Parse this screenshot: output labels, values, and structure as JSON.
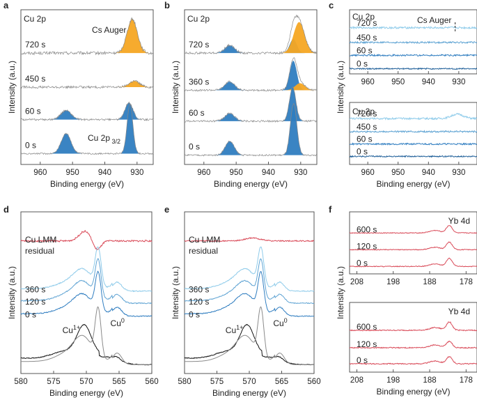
{
  "figure": {
    "colors": {
      "blue": "#2f7dc0",
      "orange": "#f5a623",
      "gray": "#8a8a8a",
      "red": "#d94a58",
      "light_blue": "#8ecbea",
      "mid_blue": "#5ea3d3",
      "dark_blue": "#1f5f99",
      "black": "#111111",
      "envelope": "#a0a0a0"
    }
  },
  "chart_data": [
    {
      "id": "a",
      "panel_label": "a",
      "type": "line",
      "title": "Cu 2p",
      "xlabel": "Binding energy (eV)",
      "ylabel": "Intensity (a.u.)",
      "xlim": [
        966,
        925
      ],
      "xticks": [
        "960",
        "950",
        "940",
        "930"
      ],
      "ylim": [
        0,
        10
      ],
      "series": [
        {
          "name": "720 s",
          "offset": 7.2,
          "noise": 0.2,
          "peaks": [
            {
              "label": "Cs Auger",
              "center": 931.5,
              "width": 1.6,
              "height": 2.2,
              "fill": "orange"
            }
          ]
        },
        {
          "name": "450 s",
          "offset": 5.0,
          "noise": 0.15,
          "peaks": [
            {
              "center": 930.8,
              "width": 1.6,
              "height": 0.4,
              "fill": "orange"
            }
          ]
        },
        {
          "name": "60 s",
          "offset": 2.9,
          "noise": 0.12,
          "peaks": [
            {
              "center": 952.0,
              "width": 1.6,
              "height": 0.6,
              "fill": "blue"
            },
            {
              "center": 932.5,
              "width": 1.2,
              "height": 1.1,
              "fill": "blue"
            }
          ]
        },
        {
          "name": "0 s",
          "offset": 0.7,
          "noise": 0.1,
          "peaks": [
            {
              "center": 952.0,
              "width": 1.5,
              "height": 1.3,
              "fill": "blue"
            },
            {
              "label": "Cu 2p3/2",
              "center": 932.2,
              "width": 0.9,
              "height": 3.2,
              "fill": "blue"
            }
          ]
        }
      ],
      "annotations": {
        "cs_auger": "Cs Auger",
        "cu2p_main": "Cu 2p",
        "cu2p_sub": "3/2"
      }
    },
    {
      "id": "b",
      "panel_label": "b",
      "type": "line",
      "title": "Cu 2p",
      "xlabel": "Binding energy (eV)",
      "ylabel": "Intensity (a.u.)",
      "xlim": [
        966,
        925
      ],
      "xticks": [
        "960",
        "950",
        "940",
        "930"
      ],
      "ylim": [
        0,
        10
      ],
      "series": [
        {
          "name": "720 s",
          "offset": 7.2,
          "noise": 0.15,
          "peaks": [
            {
              "center": 952.0,
              "width": 1.5,
              "height": 0.5,
              "fill": "blue"
            },
            {
              "center": 932.3,
              "width": 1.1,
              "height": 0.9,
              "fill": "blue"
            },
            {
              "center": 930.5,
              "width": 1.7,
              "height": 2.0,
              "fill": "orange"
            }
          ]
        },
        {
          "name": "360 s",
          "offset": 4.8,
          "noise": 0.12,
          "peaks": [
            {
              "center": 952.0,
              "width": 1.5,
              "height": 0.55,
              "fill": "blue"
            },
            {
              "center": 932.3,
              "width": 1.1,
              "height": 1.9,
              "fill": "blue"
            },
            {
              "center": 930.2,
              "width": 1.5,
              "height": 0.45,
              "fill": "orange"
            }
          ]
        },
        {
          "name": "60 s",
          "offset": 2.8,
          "noise": 0.12,
          "peaks": [
            {
              "center": 952.0,
              "width": 1.5,
              "height": 0.5,
              "fill": "blue"
            },
            {
              "center": 932.5,
              "width": 1.0,
              "height": 2.2,
              "fill": "blue"
            }
          ]
        },
        {
          "name": "0 s",
          "offset": 0.6,
          "noise": 0.1,
          "peaks": [
            {
              "center": 952.0,
              "width": 1.4,
              "height": 0.9,
              "fill": "blue"
            },
            {
              "center": 932.2,
              "width": 1.0,
              "height": 3.3,
              "fill": "blue"
            }
          ]
        }
      ]
    },
    {
      "id": "c_top",
      "panel_label": "c",
      "type": "line",
      "title": "Cu 2p",
      "xlabel": "",
      "ylabel": "Intensity (a.u.)",
      "xlim": [
        966,
        924
      ],
      "xticks": [
        "960",
        "950",
        "940",
        "930"
      ],
      "ylim": [
        0,
        10
      ],
      "series": [
        {
          "name": "720 s",
          "offset": 7.2,
          "noise": 0.3,
          "color": "light_blue"
        },
        {
          "name": "450 s",
          "offset": 4.9,
          "noise": 0.25,
          "color": "mid_blue"
        },
        {
          "name": "60 s",
          "offset": 2.9,
          "noise": 0.25,
          "color": "blue"
        },
        {
          "name": "0 s",
          "offset": 0.8,
          "noise": 0.2,
          "color": "dark_blue"
        }
      ],
      "annotations": {
        "cs_auger": "Cs Auger",
        "marker_x": 931.2
      }
    },
    {
      "id": "c_bottom",
      "type": "line",
      "title": "Cu 2p",
      "xlabel": "Binding energy (eV)",
      "ylabel": "",
      "xlim": [
        966,
        924
      ],
      "xticks": [
        "960",
        "950",
        "940",
        "930"
      ],
      "ylim": [
        0,
        10
      ],
      "series": [
        {
          "name": "720 s",
          "offset": 7.4,
          "noise": 0.3,
          "color": "light_blue",
          "peaks": [
            {
              "center": 930.5,
              "width": 2.0,
              "height": 0.7
            }
          ]
        },
        {
          "name": "450 s",
          "offset": 5.3,
          "noise": 0.25,
          "color": "mid_blue"
        },
        {
          "name": "60 s",
          "offset": 3.3,
          "noise": 0.25,
          "color": "blue"
        },
        {
          "name": "0 s",
          "offset": 1.3,
          "noise": 0.2,
          "color": "dark_blue"
        }
      ]
    },
    {
      "id": "d",
      "panel_label": "d",
      "type": "line",
      "xlabel": "Binding energy (eV)",
      "ylabel": "Intensity (a.u.)",
      "xlim": [
        580,
        560
      ],
      "xticks": [
        "580",
        "575",
        "570",
        "565",
        "560"
      ],
      "ylim": [
        0,
        10
      ],
      "series": [
        {
          "name": "Cu LMM",
          "offset": 8.2,
          "color": "red",
          "noise": 0.1,
          "peaks": [
            {
              "center": 570.2,
              "width": 0.9,
              "height": 0.6
            },
            {
              "center": 568.4,
              "width": 0.6,
              "height": -0.6
            }
          ]
        },
        {
          "name": "residual",
          "offset": 8.2,
          "color": "none",
          "noise": 0
        },
        {
          "name": "360 s",
          "offset": 5.1,
          "color": "light_blue",
          "noise": 0.06,
          "profile": "cu0",
          "scale": 1.0
        },
        {
          "name": "120 s",
          "offset": 4.35,
          "color": "mid_blue",
          "noise": 0.06,
          "profile": "cu0",
          "scale": 1.0
        },
        {
          "name": "0 s",
          "offset": 3.55,
          "color": "blue",
          "noise": 0.06,
          "profile": "cu0",
          "scale": 1.0
        },
        {
          "name": "Cu1+ reference",
          "offset": 0.55,
          "color": "black",
          "noise": 0.05,
          "profile": "cu1",
          "scale": 1.0
        },
        {
          "name": "Cu0 reference",
          "offset": 0.55,
          "color": "gray",
          "noise": 0,
          "profile": "cu0",
          "scale": 1.3
        }
      ],
      "annotations": {
        "cu1_main": "Cu",
        "cu1_sup": "1+",
        "cu0_main": "Cu",
        "cu0_sup": "0",
        "lmm_label": "Cu LMM",
        "residual_label": "residual"
      }
    },
    {
      "id": "e",
      "panel_label": "e",
      "type": "line",
      "xlabel": "Binding energy (eV)",
      "ylabel": "Intensity (a.u.)",
      "xlim": [
        580,
        560
      ],
      "xticks": [
        "580",
        "575",
        "570",
        "565",
        "560"
      ],
      "ylim": [
        0,
        10
      ],
      "series": [
        {
          "name": "Cu LMM",
          "offset": 8.2,
          "color": "red",
          "noise": 0.07,
          "peaks": [
            {
              "center": 569.5,
              "width": 1.2,
              "height": 0.18
            }
          ]
        },
        {
          "name": "residual",
          "offset": 8.2,
          "color": "none",
          "noise": 0
        },
        {
          "name": "360 s",
          "offset": 5.1,
          "color": "light_blue",
          "noise": 0.05,
          "profile": "cu0",
          "scale": 1.0
        },
        {
          "name": "120 s",
          "offset": 4.35,
          "color": "mid_blue",
          "noise": 0.05,
          "profile": "cu0",
          "scale": 1.0
        },
        {
          "name": "0 s",
          "offset": 3.55,
          "color": "blue",
          "noise": 0.05,
          "profile": "cu0",
          "scale": 1.0
        },
        {
          "name": "Cu1+ reference",
          "offset": 0.55,
          "color": "black",
          "noise": 0.05,
          "profile": "cu1",
          "scale": 1.0
        },
        {
          "name": "Cu0 reference",
          "offset": 0.55,
          "color": "gray",
          "noise": 0,
          "profile": "cu0",
          "scale": 1.3
        }
      ],
      "annotations": {
        "cu1_main": "Cu",
        "cu1_sup": "1+",
        "cu0_main": "Cu",
        "cu0_sup": "0",
        "lmm_label": "Cu LMM",
        "residual_label": "residual"
      }
    },
    {
      "id": "f_top",
      "panel_label": "f",
      "type": "line",
      "title": "Yb 4d",
      "xlabel": "",
      "ylabel": "Intensity (a.u.)",
      "xlim": [
        210,
        175
      ],
      "xticks": [
        "208",
        "198",
        "188",
        "178"
      ],
      "ylim": [
        0,
        10
      ],
      "series": [
        {
          "name": "600 s",
          "offset": 6.6,
          "color": "red",
          "noise": 0.12,
          "peaks": [
            {
              "center": 182.6,
              "width": 0.8,
              "height": 1.2
            },
            {
              "center": 186.5,
              "width": 1.5,
              "height": 0.4
            }
          ]
        },
        {
          "name": "120 s",
          "offset": 3.9,
          "color": "red",
          "noise": 0.12,
          "peaks": [
            {
              "center": 182.6,
              "width": 0.8,
              "height": 1.2
            },
            {
              "center": 186.5,
              "width": 1.5,
              "height": 0.4
            }
          ]
        },
        {
          "name": "0 s",
          "offset": 1.2,
          "color": "red",
          "noise": 0.12,
          "peaks": [
            {
              "center": 182.6,
              "width": 0.8,
              "height": 1.3
            },
            {
              "center": 186.5,
              "width": 1.5,
              "height": 0.4
            }
          ]
        }
      ]
    },
    {
      "id": "f_bottom",
      "type": "line",
      "title": "Yb 4d",
      "xlabel": "Binding energy (eV)",
      "ylabel": "",
      "xlim": [
        210,
        175
      ],
      "xticks": [
        "208",
        "198",
        "188",
        "178"
      ],
      "ylim": [
        0,
        10
      ],
      "series": [
        {
          "name": "600 s",
          "offset": 6.0,
          "color": "red",
          "noise": 0.14,
          "peaks": [
            {
              "center": 182.6,
              "width": 0.8,
              "height": 1.2
            },
            {
              "center": 186.5,
              "width": 1.5,
              "height": 0.4
            }
          ]
        },
        {
          "name": "120 s",
          "offset": 3.5,
          "color": "red",
          "noise": 0.14,
          "peaks": [
            {
              "center": 182.6,
              "width": 0.8,
              "height": 0.9
            },
            {
              "center": 186.5,
              "width": 1.5,
              "height": 0.4
            }
          ]
        },
        {
          "name": "0 s",
          "offset": 1.2,
          "color": "red",
          "noise": 0.14,
          "peaks": [
            {
              "center": 182.6,
              "width": 0.8,
              "height": 1.0
            },
            {
              "center": 186.5,
              "width": 1.5,
              "height": 0.4
            }
          ]
        }
      ]
    }
  ]
}
